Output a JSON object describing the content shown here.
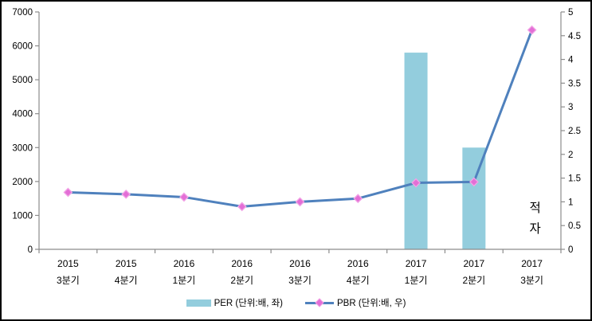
{
  "chart_data": {
    "type": "bar+line combo",
    "grid": false,
    "legend_position": "bottom",
    "categories": [
      [
        "2015",
        "3분기"
      ],
      [
        "2015",
        "4분기"
      ],
      [
        "2016",
        "1분기"
      ],
      [
        "2016",
        "2분기"
      ],
      [
        "2016",
        "3분기"
      ],
      [
        "2016",
        "4분기"
      ],
      [
        "2017",
        "1분기"
      ],
      [
        "2017",
        "2분기"
      ],
      [
        "2017",
        "3분기"
      ]
    ],
    "series": [
      {
        "name": "PER (단위:배, 좌)",
        "type": "bar",
        "axis": "left",
        "color": "#93CDDD",
        "values": [
          null,
          null,
          null,
          null,
          null,
          null,
          5800,
          3000,
          null
        ]
      },
      {
        "name": "PBR (단위:배, 우)",
        "type": "line",
        "axis": "right",
        "color": "#4F81BD",
        "marker": "diamond",
        "marker_color": "#E36ED6",
        "marker_edge_color": "#F2A3E6",
        "values": [
          1.2,
          1.16,
          1.1,
          0.9,
          1.0,
          1.07,
          1.4,
          1.42,
          4.62
        ]
      }
    ],
    "left_axis": {
      "min": 0,
      "max": 7000,
      "step": 1000,
      "labels": [
        "0",
        "1000",
        "2000",
        "3000",
        "4000",
        "5000",
        "6000",
        "7000"
      ]
    },
    "right_axis": {
      "min": 0,
      "max": 5,
      "step": 0.5,
      "labels": [
        "0",
        "0.5",
        "1",
        "1.5",
        "2",
        "2.5",
        "3",
        "3.5",
        "4",
        "4.5",
        "5"
      ]
    },
    "annotation": {
      "text": "적자",
      "lines": [
        "적",
        "자"
      ],
      "category_index": 8
    },
    "axis_color": "#8C8C8C",
    "text_color": "#000000"
  }
}
